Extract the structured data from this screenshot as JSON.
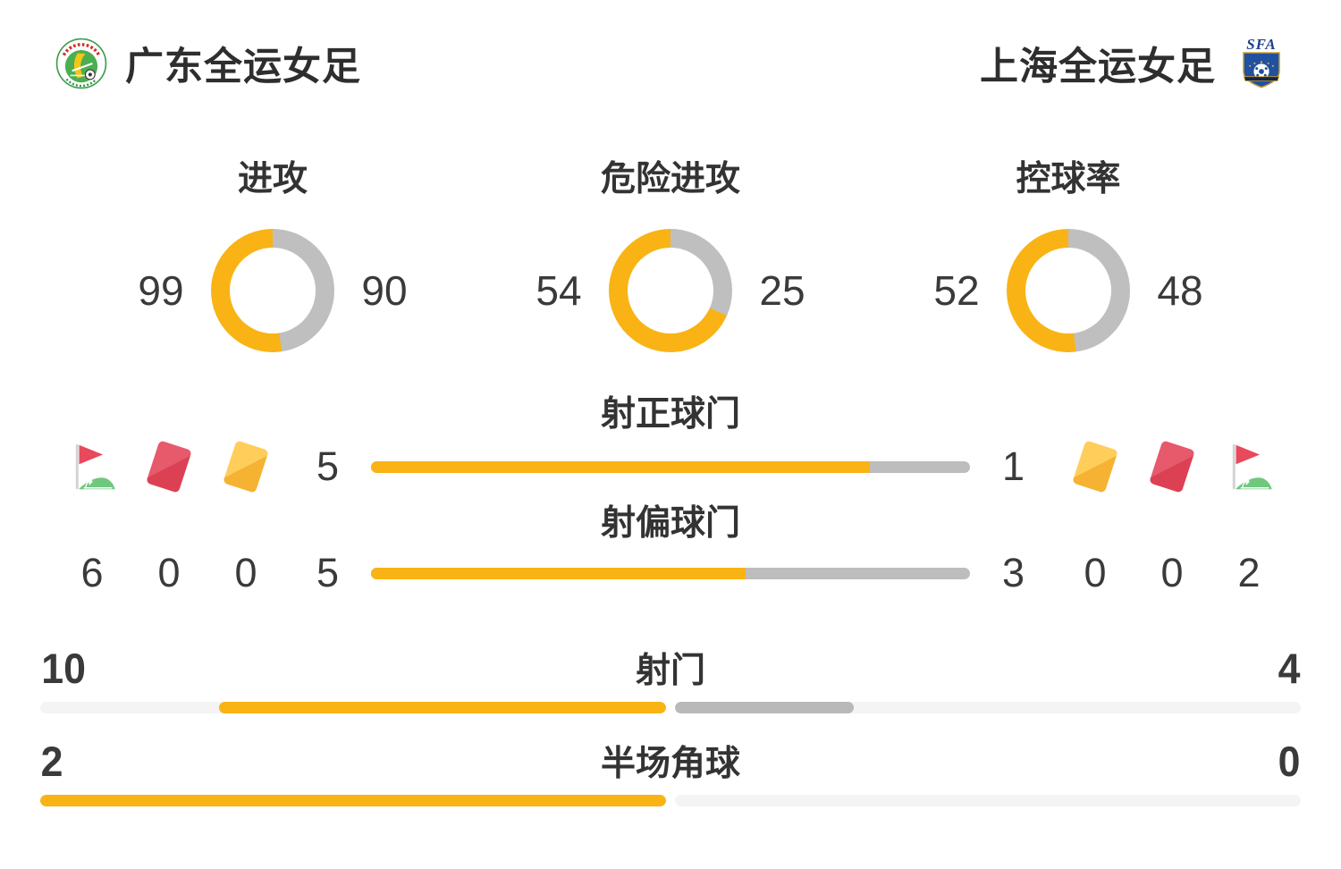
{
  "header": {
    "home_team": "广东全运女足",
    "away_team": "上海全运女足",
    "away_badge": "SFA"
  },
  "donuts": [
    {
      "label": "进攻",
      "home": 99,
      "away": 90
    },
    {
      "label": "危险进攻",
      "home": 54,
      "away": 25
    },
    {
      "label": "控球率",
      "home": 52,
      "away": 48
    }
  ],
  "cards": {
    "home": {
      "corner": 6,
      "red": 0,
      "yellow": 0
    },
    "away": {
      "yellow": 0,
      "red": 0,
      "corner": 2
    }
  },
  "inline_bars": [
    {
      "label": "射正球门",
      "home": 5,
      "away": 1
    },
    {
      "label": "射偏球门",
      "home": 5,
      "away": 3
    }
  ],
  "full_bars": [
    {
      "label": "射门",
      "home": 10,
      "away": 4
    },
    {
      "label": "半场角球",
      "home": 2,
      "away": 0
    }
  ],
  "colors": {
    "home": "#F9B315",
    "away_donut": "#BFBFBF",
    "away_inline": "#BDBDBD",
    "away_full": "#B9B9B9",
    "track": "#F4F4F4",
    "red_card": "#DC4153",
    "yellow_card": "#F6B232",
    "flag_green": "#70C77E",
    "flag_red": "#E8495C"
  },
  "chart_data": [
    {
      "type": "pie",
      "variant": "donut",
      "title": "进攻",
      "series": [
        {
          "name": "广东全运女足",
          "values": [
            99
          ]
        },
        {
          "name": "上海全运女足",
          "values": [
            90
          ]
        }
      ]
    },
    {
      "type": "pie",
      "variant": "donut",
      "title": "危险进攻",
      "series": [
        {
          "name": "广东全运女足",
          "values": [
            54
          ]
        },
        {
          "name": "上海全运女足",
          "values": [
            25
          ]
        }
      ]
    },
    {
      "type": "pie",
      "variant": "donut",
      "title": "控球率",
      "series": [
        {
          "name": "广东全运女足",
          "values": [
            52
          ]
        },
        {
          "name": "上海全运女足",
          "values": [
            48
          ]
        }
      ]
    },
    {
      "type": "bar",
      "title": "射正球门",
      "categories": [
        "广东全运女足",
        "上海全运女足"
      ],
      "values": [
        5,
        1
      ]
    },
    {
      "type": "bar",
      "title": "射偏球门",
      "categories": [
        "广东全运女足",
        "上海全运女足"
      ],
      "values": [
        5,
        3
      ]
    },
    {
      "type": "bar",
      "title": "射门",
      "categories": [
        "广东全运女足",
        "上海全运女足"
      ],
      "values": [
        10,
        4
      ]
    },
    {
      "type": "bar",
      "title": "半场角球",
      "categories": [
        "广东全运女足",
        "上海全运女足"
      ],
      "values": [
        2,
        0
      ]
    },
    {
      "type": "table",
      "title": "角球/红牌/黄牌",
      "categories": [
        "角球",
        "红牌",
        "黄牌"
      ],
      "series": [
        {
          "name": "广东全运女足",
          "values": [
            6,
            0,
            0
          ]
        },
        {
          "name": "上海全运女足",
          "values": [
            2,
            0,
            0
          ]
        }
      ]
    }
  ]
}
